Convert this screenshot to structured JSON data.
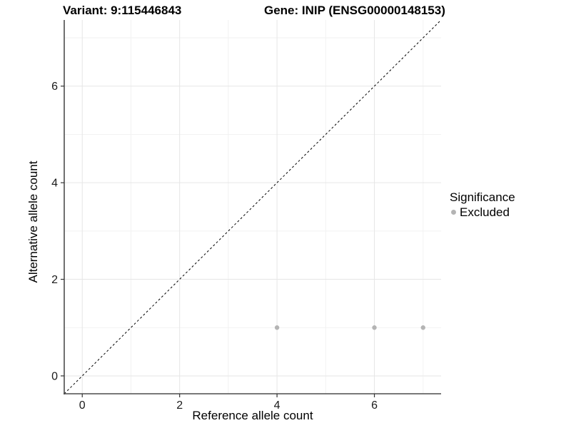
{
  "titles": {
    "variant": "Variant: 9:115446843",
    "gene": "Gene: INIP (ENSG00000148153)"
  },
  "legend": {
    "title": "Significance",
    "items": [
      {
        "label": "Excluded",
        "color": "#b4b4b4"
      }
    ]
  },
  "chart_data": {
    "type": "scatter",
    "title": "",
    "xlabel": "Reference allele count",
    "ylabel": "Alternative allele count",
    "xlim": [
      -0.37,
      7.37
    ],
    "ylim": [
      -0.37,
      7.37
    ],
    "x_ticks": {
      "values": [
        0,
        2,
        4,
        6
      ],
      "labels": [
        "0",
        "2",
        "4",
        "6"
      ]
    },
    "y_ticks": {
      "values": [
        0,
        2,
        4,
        6
      ],
      "labels": [
        "0",
        "2",
        "4",
        "6"
      ]
    },
    "x_minor_gridlines": [
      1,
      3,
      5,
      7
    ],
    "y_minor_gridlines": [
      1,
      3,
      5,
      7
    ],
    "grid": true,
    "legend_position": "right",
    "series": [
      {
        "name": "Excluded",
        "color": "#b4b4b4",
        "marker": "circle",
        "points": [
          {
            "x": 4,
            "y": 1
          },
          {
            "x": 6,
            "y": 1
          },
          {
            "x": 7,
            "y": 1
          }
        ]
      }
    ],
    "reference_line": {
      "kind": "identity",
      "slope": 1,
      "intercept": 0,
      "style": "dashed",
      "color": "#000000"
    },
    "colors": {
      "grid_major": "#e6e6e6",
      "grid_minor": "#f2f2f2",
      "axis_line": "#4d4d4d",
      "tick_mark": "#333333",
      "tick_text": "#1a1a1a"
    }
  }
}
